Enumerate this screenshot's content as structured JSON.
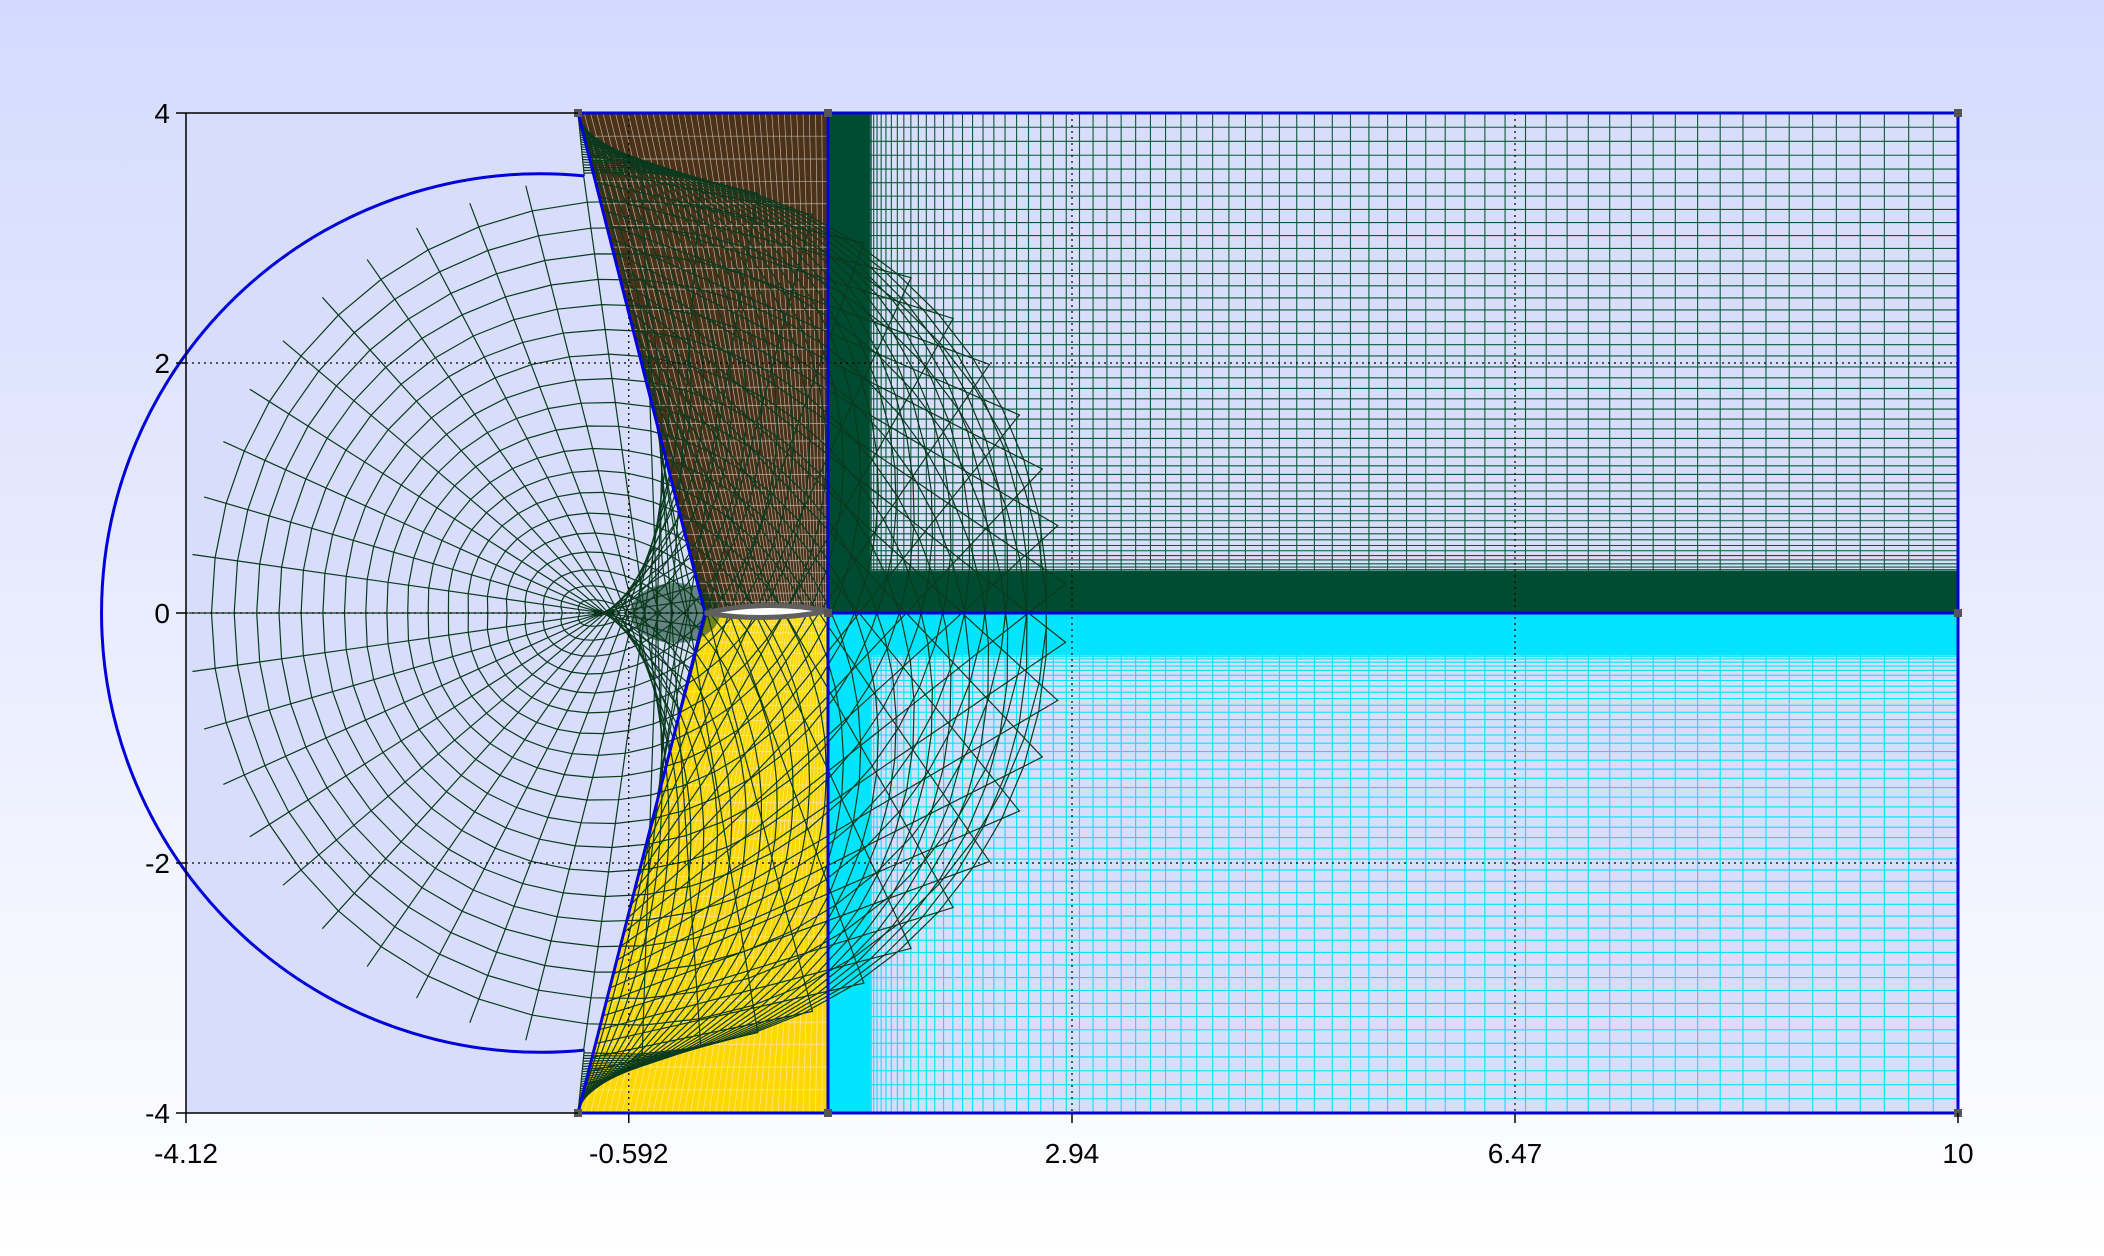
{
  "plot": {
    "x_ticks": [
      {
        "value": -4.12,
        "label": "-4.12"
      },
      {
        "value": -0.592,
        "label": "-0.592"
      },
      {
        "value": 2.94,
        "label": "2.94"
      },
      {
        "value": 6.47,
        "label": "6.47"
      },
      {
        "value": 10,
        "label": "10"
      }
    ],
    "y_ticks": [
      {
        "value": 4,
        "label": "4"
      },
      {
        "value": 2,
        "label": "2"
      },
      {
        "value": 0,
        "label": "0"
      },
      {
        "value": -2,
        "label": "-2"
      },
      {
        "value": -4,
        "label": "-4"
      }
    ],
    "xlim": [
      -4.12,
      10
    ],
    "ylim": [
      -4,
      4
    ],
    "grid": "dotted"
  },
  "mesh": {
    "c_block_center": [
      -0.6,
      0
    ],
    "c_block_radius": 3.5,
    "block_boundary_color": "#0000dd",
    "airfoil_color": "#606060",
    "blocks": [
      {
        "id": "c-region",
        "fill": "none",
        "line_color": "#0a3a1e"
      },
      {
        "id": "upper-wedge",
        "fill": "#4a3118",
        "line_color": "#ffffff"
      },
      {
        "id": "lower-wedge",
        "fill": "#ffd700",
        "line_color": "#ffffff"
      },
      {
        "id": "upper-wake",
        "fill": "#004c33",
        "line_color": "#0a5a3a"
      },
      {
        "id": "lower-wake",
        "fill": "#00e4ff",
        "line_color": "#00e4ff"
      }
    ]
  },
  "colors": {
    "bg_top": "#d3dafe",
    "bg_bottom": "#ffffff",
    "plot_bg": "#d8ddfb"
  }
}
